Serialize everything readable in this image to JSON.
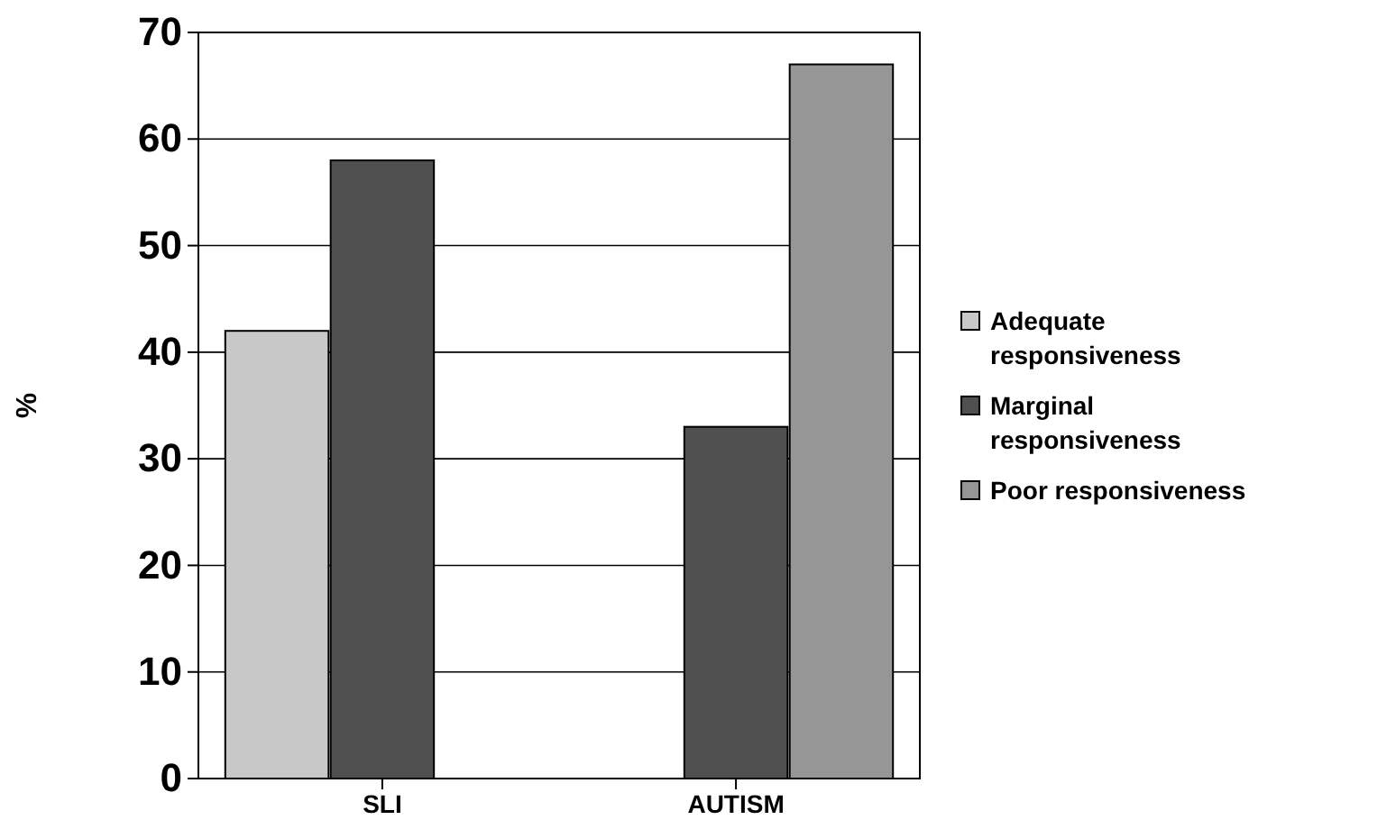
{
  "chart_data": {
    "type": "bar",
    "ylabel": "%",
    "categories": [
      "SLI",
      "AUTISM"
    ],
    "series": [
      {
        "name": "Adequate responsiveness",
        "color": "#c8c8c8",
        "values": [
          42,
          0
        ]
      },
      {
        "name": "Marginal responsiveness",
        "color": "#505050",
        "values": [
          58,
          33
        ]
      },
      {
        "name": "Poor responsiveness",
        "color": "#969696",
        "values": [
          0,
          67
        ]
      }
    ],
    "ylim": [
      0,
      70
    ],
    "yticks": [
      0,
      10,
      20,
      30,
      40,
      50,
      60,
      70
    ],
    "grid": "y",
    "legend": "right"
  }
}
